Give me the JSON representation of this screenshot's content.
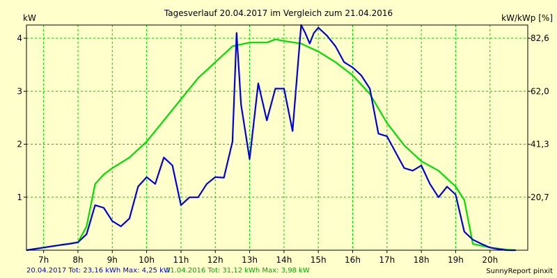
{
  "chart_data": {
    "type": "line",
    "title": "Tagesverlauf 20.04.2017 im Vergleich zum 21.04.2016",
    "ylabel_left": "kW",
    "ylabel_right": "kW/kWp [%]",
    "ylim": [
      0,
      4.25
    ],
    "xlim": [
      6.5,
      21.1
    ],
    "y_ticks": [
      1,
      2,
      3,
      4
    ],
    "y_tick_labels": [
      "1",
      "2",
      "3",
      "4"
    ],
    "right_ticks": [
      {
        "y": 1,
        "label": "20,7"
      },
      {
        "y": 2,
        "label": "41,3"
      },
      {
        "y": 3,
        "label": "62,0"
      },
      {
        "y": 4,
        "label": "82,6"
      }
    ],
    "x_ticks": [
      7,
      8,
      9,
      10,
      11,
      12,
      13,
      14,
      15,
      16,
      17,
      18,
      19,
      20
    ],
    "x_tick_labels": [
      "7h",
      "8h",
      "9h",
      "10h",
      "11h",
      "12h",
      "13h",
      "14h",
      "15h",
      "16h",
      "17h",
      "18h",
      "19h",
      "20h"
    ],
    "grid": true,
    "series": [
      {
        "name": "20.04.2017",
        "color": "#0000dd",
        "x": [
          6.5,
          7.0,
          7.5,
          7.75,
          8.0,
          8.25,
          8.5,
          8.75,
          9.0,
          9.25,
          9.5,
          9.75,
          10.0,
          10.25,
          10.5,
          10.75,
          11.0,
          11.25,
          11.5,
          11.75,
          12.0,
          12.25,
          12.5,
          12.62,
          12.75,
          13.0,
          13.25,
          13.5,
          13.75,
          14.0,
          14.25,
          14.5,
          14.62,
          14.75,
          14.87,
          15.0,
          15.25,
          15.5,
          15.75,
          16.0,
          16.25,
          16.5,
          16.75,
          17.0,
          17.25,
          17.5,
          17.75,
          18.0,
          18.25,
          18.5,
          18.75,
          19.0,
          19.25,
          19.5,
          19.75,
          20.0,
          20.25,
          20.5,
          20.75
        ],
        "y": [
          0,
          0.05,
          0.1,
          0.12,
          0.15,
          0.3,
          0.85,
          0.8,
          0.55,
          0.45,
          0.6,
          1.2,
          1.38,
          1.25,
          1.75,
          1.6,
          0.85,
          1.0,
          1.0,
          1.25,
          1.38,
          1.37,
          2.05,
          4.1,
          2.75,
          1.72,
          3.15,
          2.45,
          3.05,
          3.05,
          2.25,
          4.25,
          4.1,
          3.9,
          4.1,
          4.2,
          4.05,
          3.85,
          3.55,
          3.45,
          3.3,
          3.05,
          2.2,
          2.15,
          1.85,
          1.55,
          1.5,
          1.6,
          1.25,
          1.0,
          1.2,
          1.05,
          0.35,
          0.2,
          0.12,
          0.05,
          0.02,
          0.0,
          0.0
        ]
      },
      {
        "name": "21.04.2016",
        "color": "#00dd00",
        "x": [
          6.5,
          7.0,
          7.5,
          8.0,
          8.25,
          8.5,
          8.75,
          9.0,
          9.5,
          10.0,
          10.5,
          11.0,
          11.5,
          12.0,
          12.5,
          13.0,
          13.5,
          13.75,
          14.0,
          14.5,
          15.0,
          15.5,
          16.0,
          16.5,
          17.0,
          17.5,
          18.0,
          18.5,
          19.0,
          19.25,
          19.5,
          20.0,
          20.5,
          20.75
        ],
        "y": [
          0,
          0.05,
          0.1,
          0.15,
          0.45,
          1.25,
          1.43,
          1.55,
          1.75,
          2.05,
          2.45,
          2.85,
          3.25,
          3.55,
          3.85,
          3.92,
          3.92,
          3.98,
          3.95,
          3.9,
          3.75,
          3.55,
          3.3,
          2.95,
          2.4,
          1.98,
          1.68,
          1.5,
          1.2,
          0.95,
          0.12,
          0.05,
          0.01,
          0.0
        ]
      }
    ]
  },
  "footer": {
    "series1_label": "20.04.2017 Tot: 23,16 kWh Max: 4,25 kW",
    "series2_label": "21.04.2016 Tot: 31,12 kWh Max: 3,98 kW",
    "brand": "SunnyReport pinxit"
  }
}
